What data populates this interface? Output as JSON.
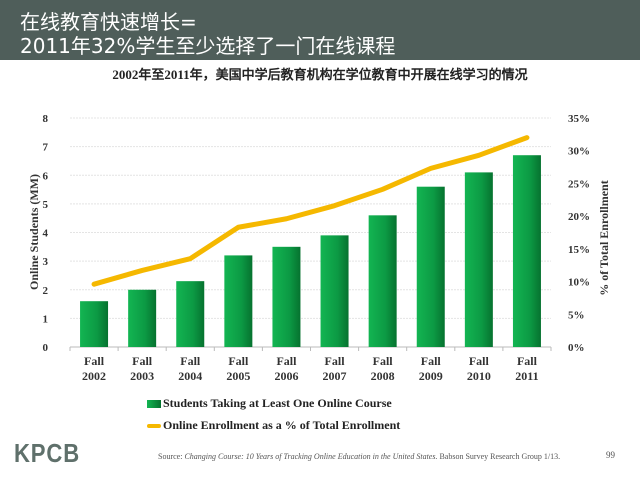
{
  "header": {
    "title_line1": "在线教育快速增长=",
    "title_line2": "2011年32%学生至少选择了一门在线课程"
  },
  "subtitle": "2002年至2011年，美国中学后教育机构在学位教育中开展在线学习的情况",
  "chart_data": {
    "type": "bar",
    "categories": [
      "Fall 2002",
      "Fall 2003",
      "Fall 2004",
      "Fall 2005",
      "Fall 2006",
      "Fall 2007",
      "Fall 2008",
      "Fall 2009",
      "Fall 2010",
      "Fall 2011"
    ],
    "category_lines": [
      [
        "Fall",
        "2002"
      ],
      [
        "Fall",
        "2003"
      ],
      [
        "Fall",
        "2004"
      ],
      [
        "Fall",
        "2005"
      ],
      [
        "Fall",
        "2006"
      ],
      [
        "Fall",
        "2007"
      ],
      [
        "Fall",
        "2008"
      ],
      [
        "Fall",
        "2009"
      ],
      [
        "Fall",
        "2010"
      ],
      [
        "Fall",
        "2011"
      ]
    ],
    "ylabel": "Online Students (MM)",
    "y2label": "% of Total Enrollment",
    "ylim": [
      0,
      8
    ],
    "y2lim": [
      0,
      35
    ],
    "yticks": [
      "0",
      "1",
      "2",
      "3",
      "4",
      "5",
      "6",
      "7",
      "8"
    ],
    "y2ticks": [
      "0%",
      "5%",
      "10%",
      "15%",
      "20%",
      "25%",
      "30%",
      "35%"
    ],
    "grid": true,
    "legend_placement": "bottom",
    "series": [
      {
        "name": "Students Taking at Least One Online Course",
        "type": "bar",
        "axis": "left",
        "color": "#0f9a45",
        "values": [
          1.6,
          2.0,
          2.3,
          3.2,
          3.5,
          3.9,
          4.6,
          5.6,
          6.1,
          6.7
        ]
      },
      {
        "name": "Online Enrollment as a %  of Total Enrollment",
        "type": "line",
        "axis": "right",
        "color": "#f5b800",
        "values": [
          9.6,
          11.7,
          13.5,
          18.3,
          19.6,
          21.6,
          24.1,
          27.3,
          29.3,
          32.0
        ]
      }
    ]
  },
  "footer": {
    "logo": "KPCB",
    "source_prefix": "Source: ",
    "source_title": "Changing Course: 10 Years of Tracking Online Education in the United States.",
    "source_suffix": " Babson Survey Research Group 1/13.",
    "page_number": "99"
  }
}
